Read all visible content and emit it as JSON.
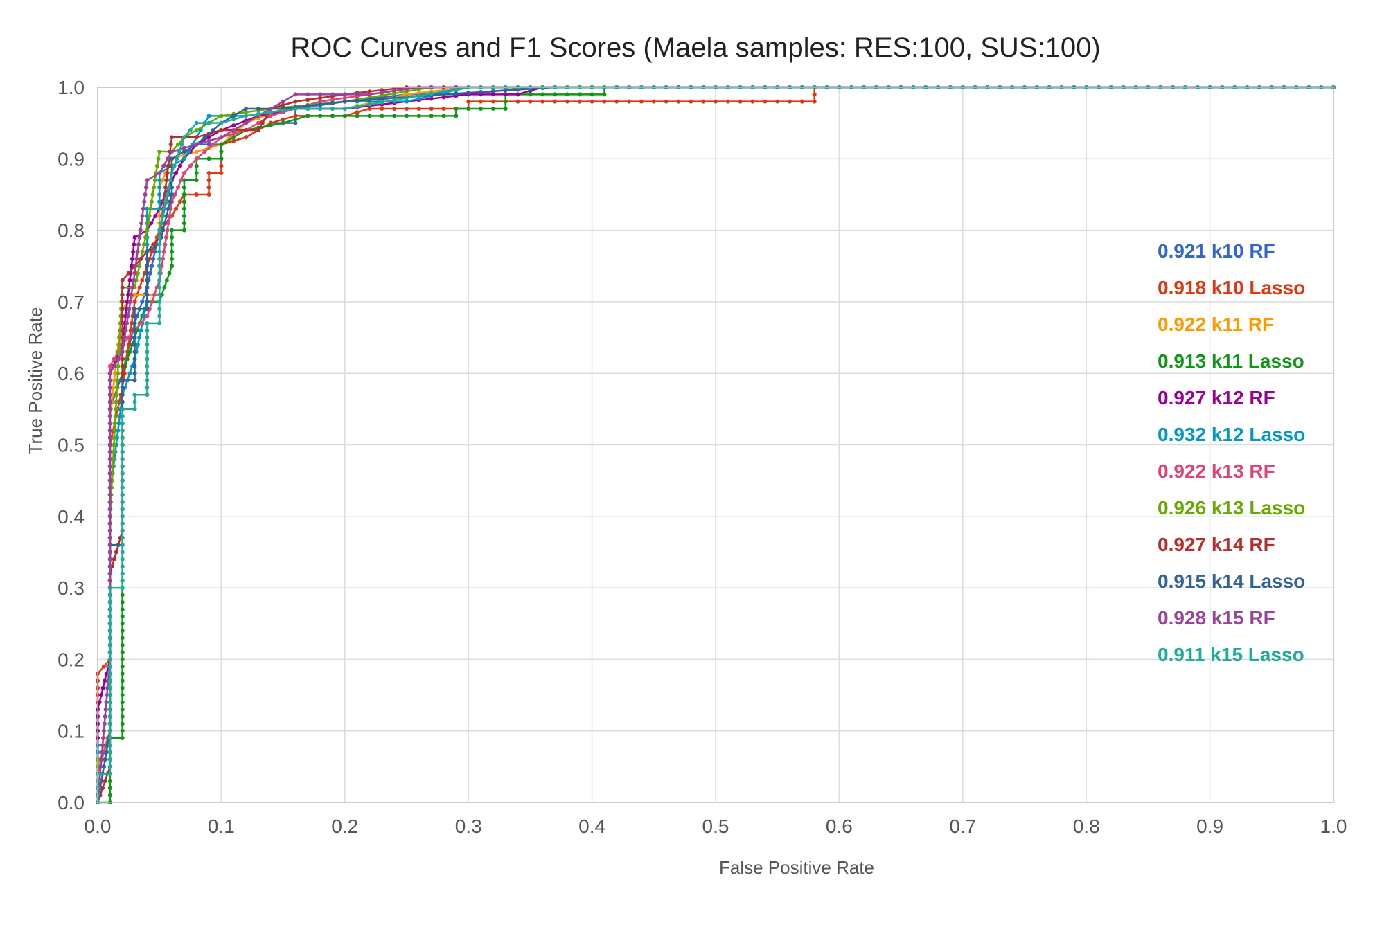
{
  "chart_data": {
    "type": "line",
    "title": "ROC Curves and F1 Scores (Maela samples: RES:100, SUS:100)",
    "xlabel": "False Positive Rate",
    "ylabel": "True Positive Rate",
    "xlim": [
      0,
      1
    ],
    "ylim": [
      0,
      1
    ],
    "grid": true,
    "legend_position": "right",
    "x_ticks": [
      "0.0",
      "0.1",
      "0.2",
      "0.3",
      "0.4",
      "0.5",
      "0.6",
      "0.7",
      "0.8",
      "0.9",
      "1.0"
    ],
    "y_ticks": [
      "0.0",
      "0.1",
      "0.2",
      "0.3",
      "0.4",
      "0.5",
      "0.6",
      "0.7",
      "0.8",
      "0.9",
      "1.0"
    ],
    "series": [
      {
        "name": "0.921 k10 RF",
        "color": "#3366cc",
        "points": [
          [
            0,
            0
          ],
          [
            0.01,
            0.1
          ],
          [
            0.01,
            0.55
          ],
          [
            0.02,
            0.6
          ],
          [
            0.03,
            0.67
          ],
          [
            0.04,
            0.72
          ],
          [
            0.05,
            0.8
          ],
          [
            0.06,
            0.87
          ],
          [
            0.07,
            0.9
          ],
          [
            0.08,
            0.92
          ],
          [
            0.1,
            0.92
          ],
          [
            0.12,
            0.93
          ],
          [
            0.14,
            0.95
          ],
          [
            0.16,
            0.95
          ],
          [
            0.16,
            0.97
          ],
          [
            0.2,
            0.98
          ],
          [
            0.25,
            0.99
          ],
          [
            0.3,
            0.99
          ],
          [
            0.35,
            1
          ],
          [
            1,
            1
          ]
        ]
      },
      {
        "name": "0.918 k10 Lasso",
        "color": "#dc3912",
        "points": [
          [
            0,
            0
          ],
          [
            0,
            0.18
          ],
          [
            0.01,
            0.2
          ],
          [
            0.01,
            0.5
          ],
          [
            0.02,
            0.58
          ],
          [
            0.03,
            0.7
          ],
          [
            0.04,
            0.75
          ],
          [
            0.05,
            0.8
          ],
          [
            0.06,
            0.82
          ],
          [
            0.07,
            0.85
          ],
          [
            0.09,
            0.85
          ],
          [
            0.09,
            0.88
          ],
          [
            0.1,
            0.88
          ],
          [
            0.1,
            0.92
          ],
          [
            0.12,
            0.93
          ],
          [
            0.14,
            0.95
          ],
          [
            0.16,
            0.96
          ],
          [
            0.2,
            0.96
          ],
          [
            0.22,
            0.97
          ],
          [
            0.3,
            0.97
          ],
          [
            0.3,
            0.98
          ],
          [
            0.58,
            0.98
          ],
          [
            0.58,
            1
          ],
          [
            1,
            1
          ]
        ]
      },
      {
        "name": "0.922 k11 RF",
        "color": "#ff9900",
        "points": [
          [
            0,
            0
          ],
          [
            0,
            0.05
          ],
          [
            0.01,
            0.1
          ],
          [
            0.01,
            0.54
          ],
          [
            0.02,
            0.69
          ],
          [
            0.03,
            0.71
          ],
          [
            0.05,
            0.71
          ],
          [
            0.05,
            0.86
          ],
          [
            0.06,
            0.9
          ],
          [
            0.08,
            0.91
          ],
          [
            0.1,
            0.92
          ],
          [
            0.12,
            0.95
          ],
          [
            0.15,
            0.97
          ],
          [
            0.2,
            0.97
          ],
          [
            0.25,
            0.99
          ],
          [
            0.3,
            1
          ],
          [
            1,
            1
          ]
        ]
      },
      {
        "name": "0.913 k11 Lasso",
        "color": "#109618",
        "points": [
          [
            0,
            0
          ],
          [
            0.01,
            0
          ],
          [
            0.01,
            0.09
          ],
          [
            0.02,
            0.09
          ],
          [
            0.02,
            0.6
          ],
          [
            0.03,
            0.65
          ],
          [
            0.04,
            0.7
          ],
          [
            0.05,
            0.7
          ],
          [
            0.06,
            0.75
          ],
          [
            0.06,
            0.8
          ],
          [
            0.07,
            0.8
          ],
          [
            0.07,
            0.87
          ],
          [
            0.08,
            0.87
          ],
          [
            0.08,
            0.9
          ],
          [
            0.1,
            0.9
          ],
          [
            0.1,
            0.92
          ],
          [
            0.12,
            0.94
          ],
          [
            0.15,
            0.95
          ],
          [
            0.17,
            0.96
          ],
          [
            0.29,
            0.96
          ],
          [
            0.29,
            0.97
          ],
          [
            0.33,
            0.97
          ],
          [
            0.33,
            0.99
          ],
          [
            0.41,
            0.99
          ],
          [
            0.41,
            1
          ],
          [
            1,
            1
          ]
        ]
      },
      {
        "name": "0.927 k12 RF",
        "color": "#990099",
        "points": [
          [
            0,
            0
          ],
          [
            0,
            0.13
          ],
          [
            0.01,
            0.2
          ],
          [
            0.01,
            0.6
          ],
          [
            0.02,
            0.64
          ],
          [
            0.03,
            0.79
          ],
          [
            0.04,
            0.8
          ],
          [
            0.05,
            0.83
          ],
          [
            0.06,
            0.87
          ],
          [
            0.07,
            0.9
          ],
          [
            0.08,
            0.92
          ],
          [
            0.1,
            0.94
          ],
          [
            0.13,
            0.96
          ],
          [
            0.16,
            0.97
          ],
          [
            0.2,
            0.97
          ],
          [
            0.25,
            0.98
          ],
          [
            0.3,
            0.99
          ],
          [
            0.34,
            0.99
          ],
          [
            0.36,
            1
          ],
          [
            1,
            1
          ]
        ]
      },
      {
        "name": "0.932 k12 Lasso",
        "color": "#0099c6",
        "points": [
          [
            0,
            0
          ],
          [
            0,
            0.08
          ],
          [
            0.01,
            0.08
          ],
          [
            0.01,
            0.43
          ],
          [
            0.02,
            0.57
          ],
          [
            0.03,
            0.62
          ],
          [
            0.04,
            0.7
          ],
          [
            0.04,
            0.83
          ],
          [
            0.05,
            0.83
          ],
          [
            0.05,
            0.88
          ],
          [
            0.07,
            0.9
          ],
          [
            0.08,
            0.93
          ],
          [
            0.09,
            0.96
          ],
          [
            0.12,
            0.96
          ],
          [
            0.16,
            0.97
          ],
          [
            0.2,
            0.98
          ],
          [
            0.25,
            0.98
          ],
          [
            0.3,
            1
          ],
          [
            1,
            1
          ]
        ]
      },
      {
        "name": "0.922 k13 RF",
        "color": "#dd4477",
        "points": [
          [
            0,
            0
          ],
          [
            0,
            0.04
          ],
          [
            0.01,
            0.1
          ],
          [
            0.01,
            0.61
          ],
          [
            0.02,
            0.64
          ],
          [
            0.03,
            0.66
          ],
          [
            0.04,
            0.68
          ],
          [
            0.05,
            0.73
          ],
          [
            0.06,
            0.84
          ],
          [
            0.07,
            0.88
          ],
          [
            0.08,
            0.9
          ],
          [
            0.1,
            0.93
          ],
          [
            0.12,
            0.94
          ],
          [
            0.14,
            0.96
          ],
          [
            0.18,
            0.98
          ],
          [
            0.22,
            0.99
          ],
          [
            0.26,
            1
          ],
          [
            1,
            1
          ]
        ]
      },
      {
        "name": "0.926 k13 Lasso",
        "color": "#66aa00",
        "points": [
          [
            0,
            0
          ],
          [
            0,
            0.06
          ],
          [
            0.01,
            0.06
          ],
          [
            0.01,
            0.4
          ],
          [
            0.02,
            0.72
          ],
          [
            0.03,
            0.72
          ],
          [
            0.04,
            0.8
          ],
          [
            0.05,
            0.91
          ],
          [
            0.06,
            0.91
          ],
          [
            0.07,
            0.93
          ],
          [
            0.09,
            0.95
          ],
          [
            0.1,
            0.96
          ],
          [
            0.14,
            0.97
          ],
          [
            0.2,
            0.98
          ],
          [
            0.27,
            1
          ],
          [
            1,
            1
          ]
        ]
      },
      {
        "name": "0.927 k14 RF",
        "color": "#b82e2e",
        "points": [
          [
            0,
            0
          ],
          [
            0.01,
            0.05
          ],
          [
            0.01,
            0.32
          ],
          [
            0.02,
            0.38
          ],
          [
            0.02,
            0.73
          ],
          [
            0.03,
            0.75
          ],
          [
            0.04,
            0.77
          ],
          [
            0.05,
            0.79
          ],
          [
            0.06,
            0.93
          ],
          [
            0.07,
            0.93
          ],
          [
            0.08,
            0.93
          ],
          [
            0.1,
            0.94
          ],
          [
            0.13,
            0.94
          ],
          [
            0.14,
            0.97
          ],
          [
            0.16,
            0.98
          ],
          [
            0.2,
            0.99
          ],
          [
            0.25,
            1
          ],
          [
            1,
            1
          ]
        ]
      },
      {
        "name": "0.915 k14 Lasso",
        "color": "#316395",
        "points": [
          [
            0,
            0
          ],
          [
            0.01,
            0.1
          ],
          [
            0.01,
            0.36
          ],
          [
            0.02,
            0.36
          ],
          [
            0.02,
            0.59
          ],
          [
            0.03,
            0.59
          ],
          [
            0.03,
            0.69
          ],
          [
            0.04,
            0.69
          ],
          [
            0.04,
            0.77
          ],
          [
            0.05,
            0.78
          ],
          [
            0.06,
            0.85
          ],
          [
            0.06,
            0.9
          ],
          [
            0.08,
            0.92
          ],
          [
            0.1,
            0.95
          ],
          [
            0.12,
            0.97
          ],
          [
            0.15,
            0.97
          ],
          [
            0.2,
            0.98
          ],
          [
            0.28,
            0.99
          ],
          [
            0.37,
            1
          ],
          [
            1,
            1
          ]
        ]
      },
      {
        "name": "0.928 k15 RF",
        "color": "#994499",
        "points": [
          [
            0,
            0
          ],
          [
            0.01,
            0.2
          ],
          [
            0.01,
            0.6
          ],
          [
            0.02,
            0.63
          ],
          [
            0.03,
            0.74
          ],
          [
            0.04,
            0.87
          ],
          [
            0.05,
            0.88
          ],
          [
            0.06,
            0.91
          ],
          [
            0.08,
            0.92
          ],
          [
            0.1,
            0.93
          ],
          [
            0.13,
            0.96
          ],
          [
            0.16,
            0.99
          ],
          [
            0.22,
            0.99
          ],
          [
            0.26,
            1
          ],
          [
            1,
            1
          ]
        ]
      },
      {
        "name": "0.911 k15 Lasso",
        "color": "#22aa99",
        "points": [
          [
            0,
            0
          ],
          [
            0,
            0.04
          ],
          [
            0.01,
            0.04
          ],
          [
            0.01,
            0.3
          ],
          [
            0.02,
            0.3
          ],
          [
            0.02,
            0.55
          ],
          [
            0.03,
            0.55
          ],
          [
            0.03,
            0.57
          ],
          [
            0.04,
            0.57
          ],
          [
            0.04,
            0.67
          ],
          [
            0.05,
            0.67
          ],
          [
            0.05,
            0.8
          ],
          [
            0.06,
            0.88
          ],
          [
            0.07,
            0.93
          ],
          [
            0.08,
            0.95
          ],
          [
            0.1,
            0.95
          ],
          [
            0.12,
            0.96
          ],
          [
            0.16,
            0.97
          ],
          [
            0.2,
            0.97
          ],
          [
            0.3,
            1
          ],
          [
            1,
            1
          ]
        ]
      }
    ]
  }
}
